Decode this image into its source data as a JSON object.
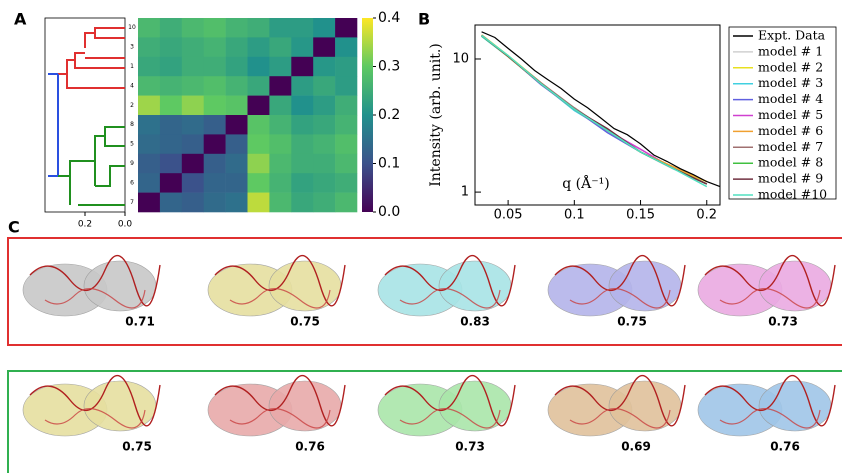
{
  "chart_data": [
    {
      "type": "heatmap",
      "panel": "A",
      "rows": [
        "10",
        "3",
        "1",
        "4",
        "2",
        "8",
        "5",
        "9",
        "6",
        "7"
      ],
      "dendro_ticks": [
        {
          "value": 0.2,
          "label": "0.2"
        },
        {
          "value": 0,
          "label": "0.0"
        }
      ],
      "zlim": [
        0,
        0.4
      ],
      "zticks": [
        {
          "value": 0,
          "label": "0.0"
        },
        0.1,
        0.2,
        0.3,
        0.4
      ],
      "matrix": [
        [
          0.27,
          0.25,
          0.27,
          0.28,
          0.26,
          0.25,
          0.22,
          0.22,
          0.2,
          0
        ],
        [
          0.25,
          0.24,
          0.25,
          0.26,
          0.24,
          0.22,
          0.24,
          0.21,
          0,
          0.2
        ],
        [
          0.24,
          0.23,
          0.25,
          0.25,
          0.23,
          0.2,
          0.22,
          0,
          0.21,
          0.22
        ],
        [
          0.27,
          0.26,
          0.27,
          0.28,
          0.26,
          0.24,
          0,
          0.22,
          0.24,
          0.22
        ],
        [
          0.34,
          0.3,
          0.33,
          0.3,
          0.29,
          0,
          0.24,
          0.2,
          0.22,
          0.25
        ],
        [
          0.15,
          0.13,
          0.14,
          0.12,
          0,
          0.29,
          0.26,
          0.23,
          0.24,
          0.26
        ],
        [
          0.14,
          0.13,
          0.12,
          0,
          0.12,
          0.3,
          0.28,
          0.25,
          0.26,
          0.28
        ],
        [
          0.12,
          0.1,
          0,
          0.12,
          0.14,
          0.33,
          0.27,
          0.25,
          0.25,
          0.27
        ],
        [
          0.13,
          0,
          0.1,
          0.13,
          0.13,
          0.3,
          0.26,
          0.23,
          0.24,
          0.25
        ],
        [
          0,
          0.13,
          0.12,
          0.14,
          0.15,
          0.36,
          0.27,
          0.24,
          0.25,
          0.27
        ]
      ]
    },
    {
      "type": "line",
      "panel": "B",
      "y_label": "Intensity (arb. unit.)",
      "x_label": "q (Å⁻¹)",
      "log_y": true,
      "xlim": [
        0.025,
        0.21
      ],
      "ylim": [
        0.8,
        18
      ],
      "xticks": [
        0.05,
        0.1,
        0.15,
        0.2
      ],
      "yticks": [
        1,
        10
      ],
      "series": [
        {
          "name": "Expt. Data",
          "color": "#000000",
          "x": [
            0.03,
            0.04,
            0.05,
            0.06,
            0.07,
            0.08,
            0.09,
            0.1,
            0.11,
            0.12,
            0.13,
            0.14,
            0.15,
            0.16,
            0.17,
            0.18,
            0.19,
            0.2,
            0.21
          ],
          "values": [
            16,
            14.5,
            12,
            10,
            8.2,
            7,
            6,
            5,
            4.3,
            3.6,
            3.0,
            2.7,
            2.3,
            1.9,
            1.7,
            1.5,
            1.35,
            1.2,
            1.1
          ]
        },
        {
          "name": "model # 1",
          "color": "#d0d0d0",
          "x": [
            0.03,
            0.05,
            0.075,
            0.1,
            0.125,
            0.15,
            0.175,
            0.2
          ],
          "values": [
            15,
            10.5,
            6.5,
            4.2,
            2.9,
            2.0,
            1.5,
            1.15
          ]
        },
        {
          "name": "model # 2",
          "color": "#e8e020",
          "x": [
            0.03,
            0.05,
            0.075,
            0.1,
            0.125,
            0.15,
            0.175,
            0.2
          ],
          "values": [
            15.2,
            10.6,
            6.6,
            4.2,
            2.9,
            2.0,
            1.5,
            1.2
          ]
        },
        {
          "name": "model # 3",
          "color": "#40d0e0",
          "x": [
            0.03,
            0.05,
            0.075,
            0.1,
            0.125,
            0.15,
            0.175,
            0.2
          ],
          "values": [
            14.8,
            10.4,
            6.5,
            4.1,
            2.9,
            2.0,
            1.5,
            1.15
          ]
        },
        {
          "name": "model # 4",
          "color": "#6060e0",
          "x": [
            0.03,
            0.05,
            0.075,
            0.1,
            0.125,
            0.15,
            0.175,
            0.2
          ],
          "values": [
            15,
            10.5,
            6.4,
            4.2,
            2.8,
            2.0,
            1.5,
            1.15
          ]
        },
        {
          "name": "model # 5",
          "color": "#d040d0",
          "x": [
            0.03,
            0.05,
            0.075,
            0.1,
            0.125,
            0.15,
            0.175,
            0.2
          ],
          "values": [
            15.1,
            10.5,
            6.5,
            4.2,
            2.9,
            2.1,
            1.5,
            1.15
          ]
        },
        {
          "name": "model # 6",
          "color": "#f0a030",
          "x": [
            0.03,
            0.05,
            0.075,
            0.1,
            0.125,
            0.15,
            0.175,
            0.2
          ],
          "values": [
            15,
            10.4,
            6.5,
            4.2,
            2.9,
            2.0,
            1.55,
            1.2
          ]
        },
        {
          "name": "model # 7",
          "color": "#a07070",
          "x": [
            0.03,
            0.05,
            0.075,
            0.1,
            0.125,
            0.15,
            0.175,
            0.2
          ],
          "values": [
            15,
            10.5,
            6.6,
            4.3,
            2.9,
            2.0,
            1.5,
            1.15
          ]
        },
        {
          "name": "model # 8",
          "color": "#40c040",
          "x": [
            0.03,
            0.05,
            0.075,
            0.1,
            0.125,
            0.15,
            0.175,
            0.2
          ],
          "values": [
            14.9,
            10.5,
            6.5,
            4.2,
            2.9,
            2.0,
            1.5,
            1.15
          ]
        },
        {
          "name": "model # 9",
          "color": "#703040",
          "x": [
            0.03,
            0.05,
            0.075,
            0.1,
            0.125,
            0.15,
            0.175,
            0.2
          ],
          "values": [
            15,
            10.5,
            6.5,
            4.2,
            3.0,
            2.0,
            1.5,
            1.15
          ]
        },
        {
          "name": "model #10",
          "color": "#50e0c0",
          "x": [
            0.03,
            0.05,
            0.075,
            0.1,
            0.125,
            0.15,
            0.175,
            0.2
          ],
          "values": [
            15,
            10.6,
            6.5,
            4.2,
            2.9,
            2.0,
            1.5,
            1.1
          ]
        }
      ]
    },
    {
      "type": "gallery",
      "panel": "C",
      "rows": [
        {
          "scores": [
            0.71,
            0.75,
            0.83,
            0.75,
            0.73
          ]
        },
        {
          "scores": [
            0.75,
            0.76,
            0.73,
            0.69,
            0.76
          ]
        }
      ]
    }
  ]
}
